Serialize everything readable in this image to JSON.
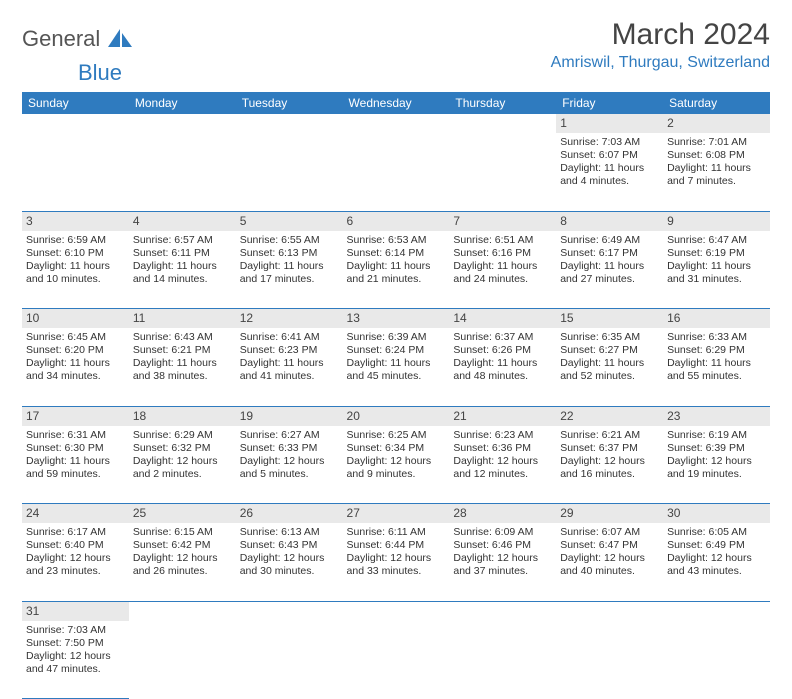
{
  "logo": {
    "part1": "General",
    "part2": "Blue"
  },
  "header": {
    "title": "March 2024",
    "location": "Amriswil, Thurgau, Switzerland"
  },
  "colors": {
    "accent": "#2f7bbf",
    "header_bg": "#2f7bbf",
    "daynum_bg": "#e9e9e9",
    "text": "#333333"
  },
  "weekdays": [
    "Sunday",
    "Monday",
    "Tuesday",
    "Wednesday",
    "Thursday",
    "Friday",
    "Saturday"
  ],
  "weeks": [
    [
      null,
      null,
      null,
      null,
      null,
      {
        "n": "1",
        "sr": "Sunrise: 7:03 AM",
        "ss": "Sunset: 6:07 PM",
        "dl1": "Daylight: 11 hours",
        "dl2": "and 4 minutes."
      },
      {
        "n": "2",
        "sr": "Sunrise: 7:01 AM",
        "ss": "Sunset: 6:08 PM",
        "dl1": "Daylight: 11 hours",
        "dl2": "and 7 minutes."
      }
    ],
    [
      {
        "n": "3",
        "sr": "Sunrise: 6:59 AM",
        "ss": "Sunset: 6:10 PM",
        "dl1": "Daylight: 11 hours",
        "dl2": "and 10 minutes."
      },
      {
        "n": "4",
        "sr": "Sunrise: 6:57 AM",
        "ss": "Sunset: 6:11 PM",
        "dl1": "Daylight: 11 hours",
        "dl2": "and 14 minutes."
      },
      {
        "n": "5",
        "sr": "Sunrise: 6:55 AM",
        "ss": "Sunset: 6:13 PM",
        "dl1": "Daylight: 11 hours",
        "dl2": "and 17 minutes."
      },
      {
        "n": "6",
        "sr": "Sunrise: 6:53 AM",
        "ss": "Sunset: 6:14 PM",
        "dl1": "Daylight: 11 hours",
        "dl2": "and 21 minutes."
      },
      {
        "n": "7",
        "sr": "Sunrise: 6:51 AM",
        "ss": "Sunset: 6:16 PM",
        "dl1": "Daylight: 11 hours",
        "dl2": "and 24 minutes."
      },
      {
        "n": "8",
        "sr": "Sunrise: 6:49 AM",
        "ss": "Sunset: 6:17 PM",
        "dl1": "Daylight: 11 hours",
        "dl2": "and 27 minutes."
      },
      {
        "n": "9",
        "sr": "Sunrise: 6:47 AM",
        "ss": "Sunset: 6:19 PM",
        "dl1": "Daylight: 11 hours",
        "dl2": "and 31 minutes."
      }
    ],
    [
      {
        "n": "10",
        "sr": "Sunrise: 6:45 AM",
        "ss": "Sunset: 6:20 PM",
        "dl1": "Daylight: 11 hours",
        "dl2": "and 34 minutes."
      },
      {
        "n": "11",
        "sr": "Sunrise: 6:43 AM",
        "ss": "Sunset: 6:21 PM",
        "dl1": "Daylight: 11 hours",
        "dl2": "and 38 minutes."
      },
      {
        "n": "12",
        "sr": "Sunrise: 6:41 AM",
        "ss": "Sunset: 6:23 PM",
        "dl1": "Daylight: 11 hours",
        "dl2": "and 41 minutes."
      },
      {
        "n": "13",
        "sr": "Sunrise: 6:39 AM",
        "ss": "Sunset: 6:24 PM",
        "dl1": "Daylight: 11 hours",
        "dl2": "and 45 minutes."
      },
      {
        "n": "14",
        "sr": "Sunrise: 6:37 AM",
        "ss": "Sunset: 6:26 PM",
        "dl1": "Daylight: 11 hours",
        "dl2": "and 48 minutes."
      },
      {
        "n": "15",
        "sr": "Sunrise: 6:35 AM",
        "ss": "Sunset: 6:27 PM",
        "dl1": "Daylight: 11 hours",
        "dl2": "and 52 minutes."
      },
      {
        "n": "16",
        "sr": "Sunrise: 6:33 AM",
        "ss": "Sunset: 6:29 PM",
        "dl1": "Daylight: 11 hours",
        "dl2": "and 55 minutes."
      }
    ],
    [
      {
        "n": "17",
        "sr": "Sunrise: 6:31 AM",
        "ss": "Sunset: 6:30 PM",
        "dl1": "Daylight: 11 hours",
        "dl2": "and 59 minutes."
      },
      {
        "n": "18",
        "sr": "Sunrise: 6:29 AM",
        "ss": "Sunset: 6:32 PM",
        "dl1": "Daylight: 12 hours",
        "dl2": "and 2 minutes."
      },
      {
        "n": "19",
        "sr": "Sunrise: 6:27 AM",
        "ss": "Sunset: 6:33 PM",
        "dl1": "Daylight: 12 hours",
        "dl2": "and 5 minutes."
      },
      {
        "n": "20",
        "sr": "Sunrise: 6:25 AM",
        "ss": "Sunset: 6:34 PM",
        "dl1": "Daylight: 12 hours",
        "dl2": "and 9 minutes."
      },
      {
        "n": "21",
        "sr": "Sunrise: 6:23 AM",
        "ss": "Sunset: 6:36 PM",
        "dl1": "Daylight: 12 hours",
        "dl2": "and 12 minutes."
      },
      {
        "n": "22",
        "sr": "Sunrise: 6:21 AM",
        "ss": "Sunset: 6:37 PM",
        "dl1": "Daylight: 12 hours",
        "dl2": "and 16 minutes."
      },
      {
        "n": "23",
        "sr": "Sunrise: 6:19 AM",
        "ss": "Sunset: 6:39 PM",
        "dl1": "Daylight: 12 hours",
        "dl2": "and 19 minutes."
      }
    ],
    [
      {
        "n": "24",
        "sr": "Sunrise: 6:17 AM",
        "ss": "Sunset: 6:40 PM",
        "dl1": "Daylight: 12 hours",
        "dl2": "and 23 minutes."
      },
      {
        "n": "25",
        "sr": "Sunrise: 6:15 AM",
        "ss": "Sunset: 6:42 PM",
        "dl1": "Daylight: 12 hours",
        "dl2": "and 26 minutes."
      },
      {
        "n": "26",
        "sr": "Sunrise: 6:13 AM",
        "ss": "Sunset: 6:43 PM",
        "dl1": "Daylight: 12 hours",
        "dl2": "and 30 minutes."
      },
      {
        "n": "27",
        "sr": "Sunrise: 6:11 AM",
        "ss": "Sunset: 6:44 PM",
        "dl1": "Daylight: 12 hours",
        "dl2": "and 33 minutes."
      },
      {
        "n": "28",
        "sr": "Sunrise: 6:09 AM",
        "ss": "Sunset: 6:46 PM",
        "dl1": "Daylight: 12 hours",
        "dl2": "and 37 minutes."
      },
      {
        "n": "29",
        "sr": "Sunrise: 6:07 AM",
        "ss": "Sunset: 6:47 PM",
        "dl1": "Daylight: 12 hours",
        "dl2": "and 40 minutes."
      },
      {
        "n": "30",
        "sr": "Sunrise: 6:05 AM",
        "ss": "Sunset: 6:49 PM",
        "dl1": "Daylight: 12 hours",
        "dl2": "and 43 minutes."
      }
    ],
    [
      {
        "n": "31",
        "sr": "Sunrise: 7:03 AM",
        "ss": "Sunset: 7:50 PM",
        "dl1": "Daylight: 12 hours",
        "dl2": "and 47 minutes."
      },
      null,
      null,
      null,
      null,
      null,
      null
    ]
  ]
}
